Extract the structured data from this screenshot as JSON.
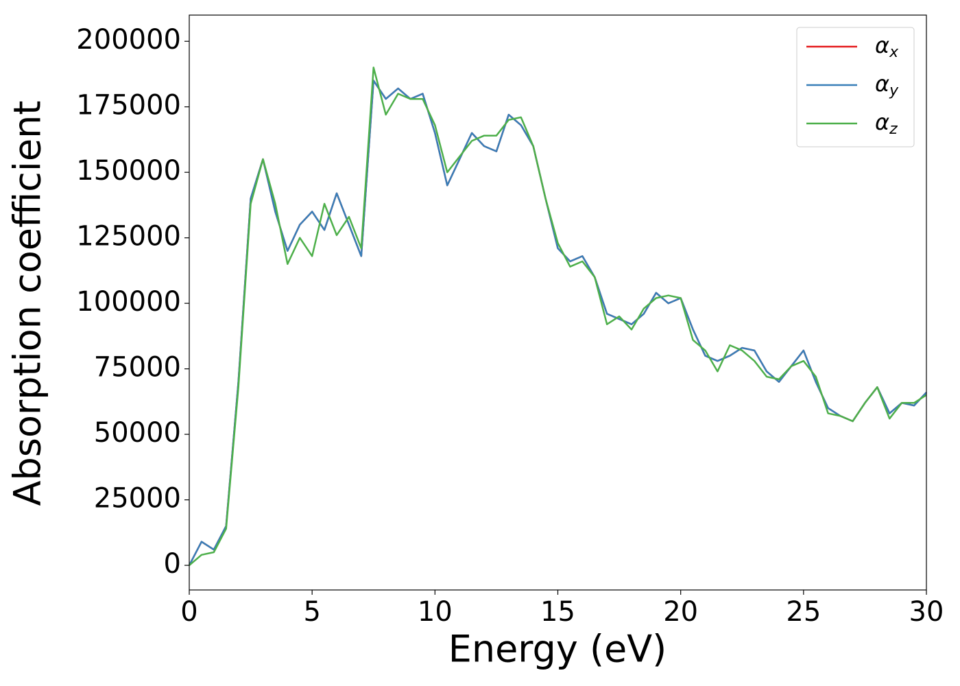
{
  "chart_data": {
    "type": "line",
    "xlabel": "Energy (eV)",
    "ylabel": "Absorption coefficient",
    "x": [
      0,
      0.5,
      1,
      1.5,
      2,
      2.5,
      3,
      3.5,
      4,
      4.5,
      5,
      5.5,
      6,
      6.5,
      7,
      7.5,
      8,
      8.5,
      9,
      9.5,
      10,
      10.5,
      11,
      11.5,
      12,
      12.5,
      13,
      13.5,
      14,
      14.5,
      15,
      15.5,
      16,
      16.5,
      17,
      17.5,
      18,
      18.5,
      19,
      19.5,
      20,
      20.5,
      21,
      21.5,
      22,
      22.5,
      23,
      23.5,
      24,
      24.5,
      25,
      25.5,
      26,
      26.5,
      27,
      27.5,
      28,
      28.5,
      29,
      29.5,
      30
    ],
    "series": [
      {
        "name": "αx",
        "color": "#e41a1c",
        "values": [
          0,
          9000,
          6000,
          15000,
          70000,
          140000,
          155000,
          135000,
          120000,
          130000,
          135000,
          128000,
          142000,
          130000,
          118000,
          185000,
          178000,
          182000,
          178000,
          180000,
          165000,
          145000,
          155000,
          165000,
          160000,
          158000,
          172000,
          168000,
          160000,
          140000,
          121000,
          116000,
          118000,
          110000,
          96000,
          94000,
          92000,
          96000,
          104000,
          100000,
          102000,
          90000,
          80000,
          78000,
          80000,
          83000,
          82000,
          74000,
          70000,
          76000,
          82000,
          70000,
          60000,
          57000,
          55000,
          62000,
          68000,
          58000,
          62000,
          61000,
          66000
        ]
      },
      {
        "name": "αy",
        "color": "#377eb8",
        "values": [
          0,
          9000,
          6000,
          15000,
          70000,
          140000,
          155000,
          135000,
          120000,
          130000,
          135000,
          128000,
          142000,
          130000,
          118000,
          185000,
          178000,
          182000,
          178000,
          180000,
          165000,
          145000,
          155000,
          165000,
          160000,
          158000,
          172000,
          168000,
          160000,
          140000,
          121000,
          116000,
          118000,
          110000,
          96000,
          94000,
          92000,
          96000,
          104000,
          100000,
          102000,
          90000,
          80000,
          78000,
          80000,
          83000,
          82000,
          74000,
          70000,
          76000,
          82000,
          70000,
          60000,
          57000,
          55000,
          62000,
          68000,
          58000,
          62000,
          61000,
          66000
        ]
      },
      {
        "name": "αz",
        "color": "#4daf4a",
        "values": [
          0,
          4000,
          5000,
          14000,
          68000,
          138000,
          155000,
          138000,
          115000,
          125000,
          118000,
          138000,
          126000,
          133000,
          121000,
          190000,
          172000,
          180000,
          178000,
          178000,
          168000,
          150000,
          156000,
          162000,
          164000,
          164000,
          170000,
          171000,
          160000,
          140000,
          123000,
          114000,
          116000,
          110000,
          92000,
          95000,
          90000,
          98000,
          102000,
          103000,
          102000,
          86000,
          82000,
          74000,
          84000,
          82000,
          78000,
          72000,
          71000,
          76000,
          78000,
          72000,
          58000,
          57000,
          55000,
          62000,
          68000,
          56000,
          62000,
          62000,
          65000
        ]
      }
    ],
    "xlim": [
      0,
      30
    ],
    "xticks": [
      0,
      5,
      10,
      15,
      20,
      25,
      30
    ],
    "ylim": [
      -9400,
      210000
    ],
    "yticks": [
      0,
      25000,
      50000,
      75000,
      100000,
      125000,
      150000,
      175000,
      200000
    ],
    "legend": "upper right"
  }
}
